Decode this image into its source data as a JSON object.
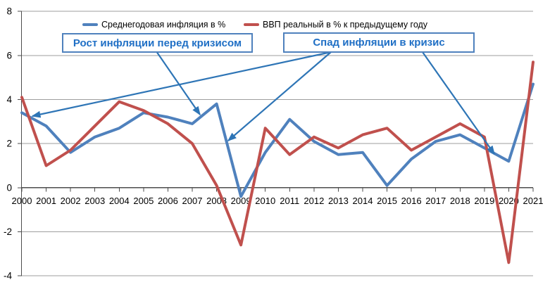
{
  "chart_data": {
    "type": "line",
    "title": "",
    "x_labels": [
      "2000",
      "2001",
      "2002",
      "2003",
      "2004",
      "2005",
      "2006",
      "2007",
      "2008",
      "2009",
      "2010",
      "2011",
      "2012",
      "2013",
      "2014",
      "2015",
      "2016",
      "2017",
      "2018",
      "2019",
      "2020",
      "2021"
    ],
    "y_ticks": [
      8,
      6,
      4,
      2,
      0,
      -2,
      -4
    ],
    "ylim": [
      -4,
      8
    ],
    "grid": true,
    "legend_position": "top",
    "series": [
      {
        "name": "Среднегодовая инфляция в %",
        "color": "#4F81BD",
        "values": [
          3.4,
          2.8,
          1.6,
          2.3,
          2.7,
          3.4,
          3.2,
          2.9,
          3.8,
          -0.4,
          1.6,
          3.1,
          2.1,
          1.5,
          1.6,
          0.1,
          1.3,
          2.1,
          2.4,
          1.8,
          1.2,
          4.7
        ]
      },
      {
        "name": "ВВП реальный в % к предыдущему году",
        "color": "#C0504D",
        "values": [
          4.1,
          1.0,
          1.7,
          2.8,
          3.9,
          3.5,
          2.9,
          2.0,
          0.1,
          -2.6,
          2.7,
          1.5,
          2.3,
          1.8,
          2.4,
          2.7,
          1.7,
          2.3,
          2.9,
          2.3,
          -3.4,
          5.7
        ]
      }
    ],
    "annotations": [
      {
        "text": "Рост инфляции перед кризисом"
      },
      {
        "text": "Спад инфляции в кризис"
      }
    ],
    "colors": {
      "annotation_blue": "#1F6FC5",
      "annotation_border": "#4F81BD",
      "arrow_blue": "#2E75B6",
      "gridline": "#9E9E9E",
      "axis": "#4D4D4D",
      "text": "#000000"
    }
  }
}
